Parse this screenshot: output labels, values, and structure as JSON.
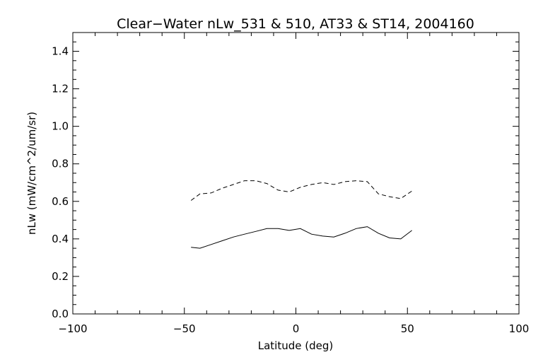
{
  "chart_data": {
    "type": "line",
    "title": "Clear−Water nLw_531 & 510, AT33 & ST14, 2004160",
    "xlabel": "Latitude (deg)",
    "ylabel": "nLw (mW/cm^2/um/sr)",
    "xlim": [
      -100,
      100
    ],
    "ylim": [
      0.0,
      1.5
    ],
    "x_ticks": [
      -100,
      -50,
      0,
      50,
      100
    ],
    "x_tick_labels": [
      "−100",
      "−50",
      "0",
      "50",
      "100"
    ],
    "y_ticks": [
      0.0,
      0.2,
      0.4,
      0.6,
      0.8,
      1.0,
      1.2,
      1.4
    ],
    "y_tick_labels": [
      "0.0",
      "0.2",
      "0.4",
      "0.6",
      "0.8",
      "1.0",
      "1.2",
      "1.4"
    ],
    "grid": false,
    "series": [
      {
        "style": "solid",
        "x": [
          -47,
          -43,
          -38,
          -33,
          -28,
          -23,
          -18,
          -13,
          -8,
          -3,
          2,
          7,
          12,
          17,
          22,
          27,
          32,
          37,
          42,
          47,
          52
        ],
        "y": [
          0.355,
          0.35,
          0.37,
          0.39,
          0.41,
          0.425,
          0.44,
          0.455,
          0.455,
          0.445,
          0.455,
          0.425,
          0.415,
          0.41,
          0.43,
          0.455,
          0.465,
          0.43,
          0.405,
          0.4,
          0.445
        ]
      },
      {
        "style": "dashed",
        "x": [
          -47,
          -43,
          -38,
          -33,
          -28,
          -23,
          -18,
          -13,
          -8,
          -3,
          2,
          7,
          12,
          17,
          22,
          27,
          32,
          37,
          42,
          47,
          52
        ],
        "y": [
          0.605,
          0.64,
          0.645,
          0.67,
          0.69,
          0.71,
          0.71,
          0.695,
          0.66,
          0.65,
          0.675,
          0.69,
          0.7,
          0.69,
          0.705,
          0.71,
          0.705,
          0.64,
          0.625,
          0.615,
          0.655
        ]
      }
    ]
  }
}
